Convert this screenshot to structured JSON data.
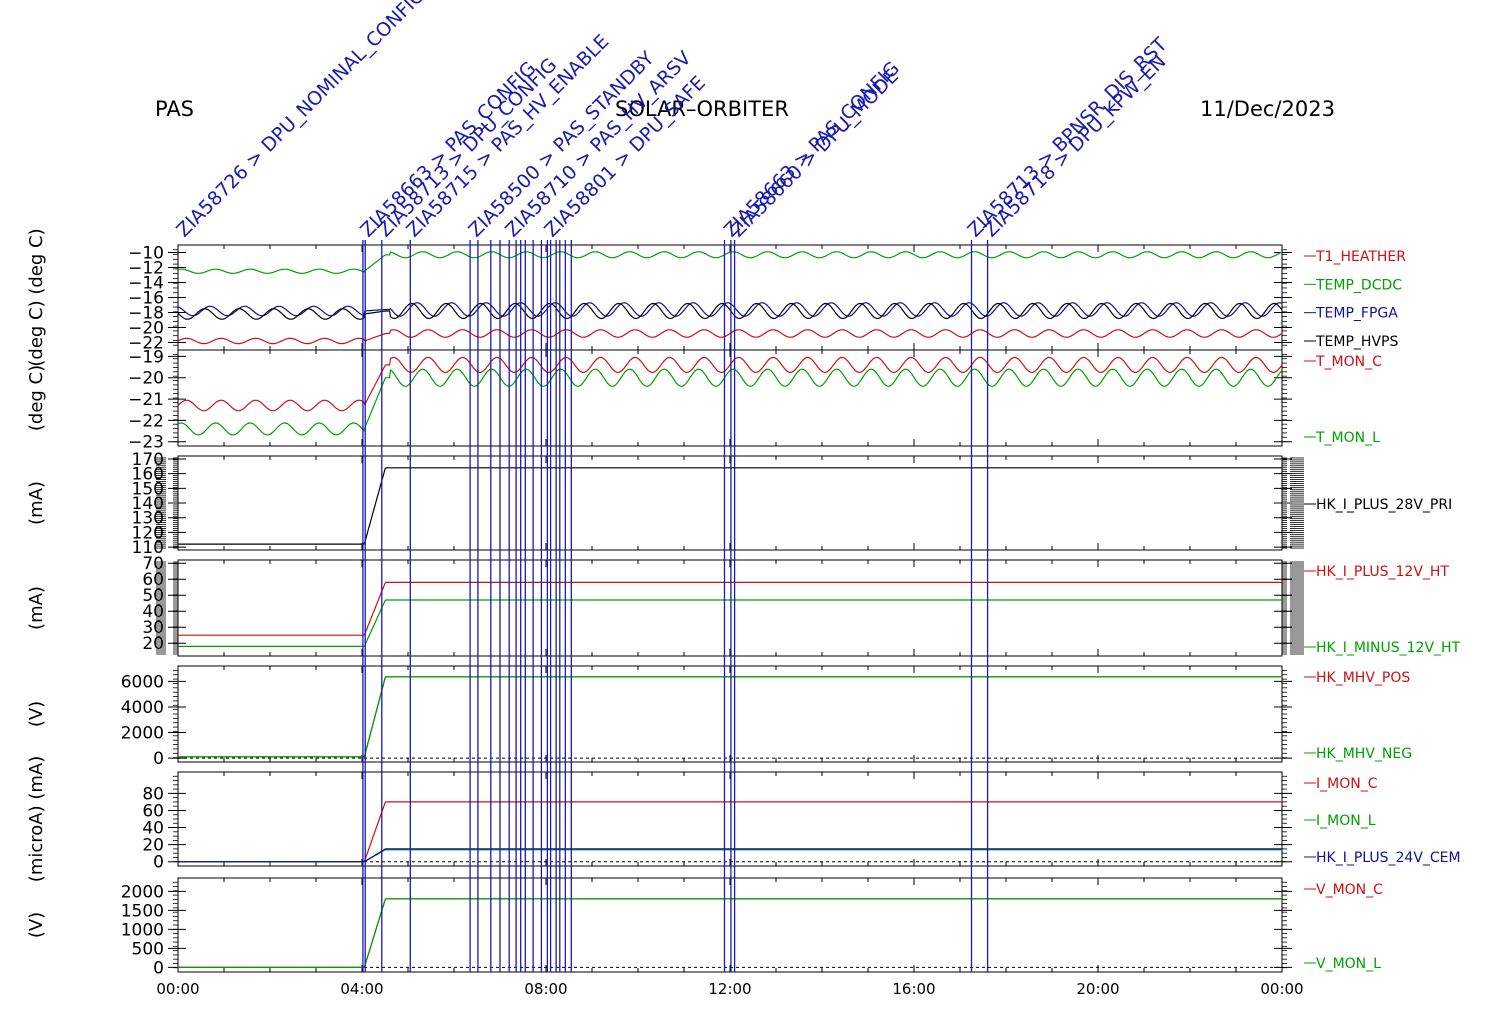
{
  "header": {
    "left_label": "PAS",
    "center_label": "SOLAR–ORBITER",
    "date": "11/Dec/2023"
  },
  "colors": {
    "red": "#d01010",
    "green": "#00a000",
    "blue": "#1010a0",
    "black": "#000000",
    "event_line": "#1a1ab0"
  },
  "chart_data": {
    "type": "line",
    "x_tick_labels": [
      "00:00",
      "04:00",
      "08:00",
      "12:00",
      "16:00",
      "20:00",
      "00:00"
    ],
    "x_range_hours": [
      0,
      24
    ],
    "events": {
      "times_hours": [
        4.02,
        4.07,
        4.43,
        5.05,
        6.35,
        6.52,
        6.8,
        7.0,
        7.2,
        7.35,
        7.45,
        7.55,
        7.72,
        7.9,
        8.03,
        8.1,
        8.22,
        8.3,
        8.42,
        8.55,
        11.88,
        12.02,
        12.1,
        17.25,
        17.6
      ],
      "labels": [
        {
          "t": 0.05,
          "text": "ZIA58726 > DPU_NOMINAL_CONFIG"
        },
        {
          "t": 4.05,
          "text": "ZIA58663 > PAS_CONFIG"
        },
        {
          "t": 4.43,
          "text": "ZIA58713 > DPU_CONFIG"
        },
        {
          "t": 5.05,
          "text": "ZIA58715 > PAS_HV_ENABLE"
        },
        {
          "t": 6.4,
          "text": "ZIA58500 > PAS_STANDBY"
        },
        {
          "t": 7.2,
          "text": "ZIA58710 > PAS_HV_ARSV"
        },
        {
          "t": 8.05,
          "text": "ZIA58801 > DPU_SAFE"
        },
        {
          "t": 11.95,
          "text": "ZIA58663 > PAS_CONFIG"
        },
        {
          "t": 12.1,
          "text": "ZIA58660 > DPU_MODE"
        },
        {
          "t": 17.25,
          "text": "ZIA58713 > BPNSR_DIS_RST"
        },
        {
          "t": 17.6,
          "text": "ZIA58718 > DPU_KPW_EN"
        }
      ]
    },
    "panels": [
      {
        "ylabel": "(deg C) (deg C)",
        "y_range": [
          -23,
          -9
        ],
        "y_ticks": [
          -10,
          -12,
          -14,
          -16,
          -18,
          -20,
          -22
        ],
        "y_tick_labels": [
          "−10",
          "−12",
          "−14",
          "−16",
          "−18",
          "−20",
          "−22"
        ],
        "series": [
          {
            "name": "T1_HEATHER",
            "color": "red",
            "before": -21.8,
            "after": -20.8,
            "amp": 0.5,
            "period": 0.75
          },
          {
            "name": "TEMP_DCDC",
            "color": "green",
            "before": -12.5,
            "after": -10.3,
            "amp": 0.4,
            "period": 0.75
          },
          {
            "name": "TEMP_FPGA",
            "color": "blue",
            "before": -17.8,
            "after": -17.6,
            "amp": 0.9,
            "period": 0.75
          },
          {
            "name": "TEMP_HVPS",
            "color": "black",
            "before": -18.2,
            "after": -17.8,
            "amp": 1.0,
            "period": 0.75
          }
        ]
      },
      {
        "ylabel": "(deg C)",
        "y_range": [
          -23.2,
          -18.7
        ],
        "y_ticks": [
          -19,
          -20,
          -21,
          -22,
          -23
        ],
        "y_tick_labels": [
          "−19",
          "−20",
          "−21",
          "−22",
          "−23"
        ],
        "series": [
          {
            "name": "T_MON_C",
            "color": "red",
            "before": -21.3,
            "after": -19.4,
            "amp": 0.35,
            "period": 0.75
          },
          {
            "name": "T_MON_L",
            "color": "green",
            "before": -22.4,
            "after": -20.0,
            "amp": 0.4,
            "period": 0.75
          }
        ]
      },
      {
        "ylabel": "(mA)",
        "y_range": [
          108,
          172
        ],
        "y_ticks": [
          170,
          160,
          150,
          140,
          130,
          120,
          110
        ],
        "y_tick_labels": [
          "170",
          "160",
          "150",
          "140",
          "130",
          "120",
          "110"
        ],
        "series": [
          {
            "name": "HK_I_PLUS_28V_PRI",
            "color": "black",
            "before": 112,
            "after": 164,
            "amp": 0,
            "period": 1
          }
        ]
      },
      {
        "ylabel": "(mA)",
        "y_range": [
          12,
          72
        ],
        "y_ticks": [
          70,
          60,
          50,
          40,
          30,
          20
        ],
        "y_tick_labels": [
          "70",
          "60",
          "50",
          "40",
          "30",
          "20"
        ],
        "series": [
          {
            "name": "HK_I_PLUS_12V_HT",
            "color": "red",
            "before": 25,
            "after": 58,
            "amp": 0,
            "period": 1
          },
          {
            "name": "HK_I_MINUS_12V_HT",
            "color": "green",
            "before": 18,
            "after": 47,
            "amp": 0,
            "period": 1
          }
        ]
      },
      {
        "ylabel": "(V)",
        "y_range": [
          -300,
          7200
        ],
        "y_ticks": [
          6000,
          4000,
          2000,
          0
        ],
        "y_tick_labels": [
          "6000",
          "4000",
          "2000",
          "0"
        ],
        "series": [
          {
            "name": "HK_MHV_POS",
            "color": "red",
            "before": 100,
            "after": 6350,
            "amp": 0,
            "period": 1
          },
          {
            "name": "HK_MHV_NEG",
            "color": "green",
            "before": 100,
            "after": 6350,
            "amp": 0,
            "period": 1
          }
        ]
      },
      {
        "ylabel": "(microA) (mA)",
        "y_range": [
          -5,
          105
        ],
        "y_ticks": [
          80,
          60,
          40,
          20,
          0
        ],
        "y_tick_labels": [
          "80",
          "60",
          "40",
          "20",
          "0"
        ],
        "series": [
          {
            "name": "I_MON_C",
            "color": "red",
            "before": 0,
            "after": 70,
            "amp": 0,
            "period": 1
          },
          {
            "name": "I_MON_L",
            "color": "green",
            "before": 0,
            "after": 14,
            "amp": 0,
            "period": 1
          },
          {
            "name": "HK_I_PLUS_24V_CEM",
            "color": "blue",
            "before": 0,
            "after": 15,
            "amp": 0,
            "period": 1
          }
        ]
      },
      {
        "ylabel": "(V)",
        "y_range": [
          -120,
          2350
        ],
        "y_ticks": [
          2000,
          1500,
          1000,
          500,
          0
        ],
        "y_tick_labels": [
          "2000",
          "1500",
          "1000",
          "500",
          "0"
        ],
        "series": [
          {
            "name": "V_MON_C",
            "color": "red",
            "before": 0,
            "after": 1800,
            "amp": 0,
            "period": 1
          },
          {
            "name": "V_MON_L",
            "color": "green",
            "before": 0,
            "after": 1800,
            "amp": 0,
            "period": 1
          }
        ]
      }
    ]
  }
}
